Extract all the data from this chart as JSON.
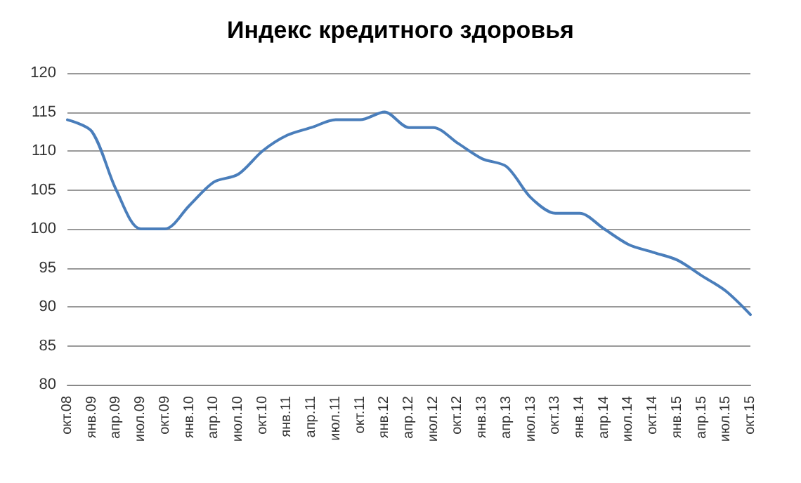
{
  "chart_data": {
    "type": "line",
    "title": "Индекс кредитного здоровья",
    "categories": [
      "окт.08",
      "янв.09",
      "апр.09",
      "июл.09",
      "окт.09",
      "янв.10",
      "апр.10",
      "июл.10",
      "окт.10",
      "янв.11",
      "апр.11",
      "июл.11",
      "окт.11",
      "янв.12",
      "апр.12",
      "июл.12",
      "окт.12",
      "янв.13",
      "апр.13",
      "июл.13",
      "окт.13",
      "янв.14",
      "апр.14",
      "июл.14",
      "окт.14",
      "янв.15",
      "апр.15",
      "июл.15",
      "окт.15"
    ],
    "series": [
      {
        "color": "#4a7ebb",
        "values": [
          114,
          112.5,
          105,
          100,
          100,
          103,
          106,
          107,
          110,
          112,
          113,
          114,
          114,
          115,
          113,
          113,
          111,
          109,
          108,
          104,
          102,
          102,
          100,
          98,
          97,
          96,
          94,
          92,
          89
        ]
      }
    ],
    "ylim": [
      80,
      120
    ],
    "yticks": [
      80,
      85,
      90,
      95,
      100,
      105,
      110,
      115,
      120
    ],
    "grid": "y",
    "marker": "none",
    "line_style": "solid"
  }
}
